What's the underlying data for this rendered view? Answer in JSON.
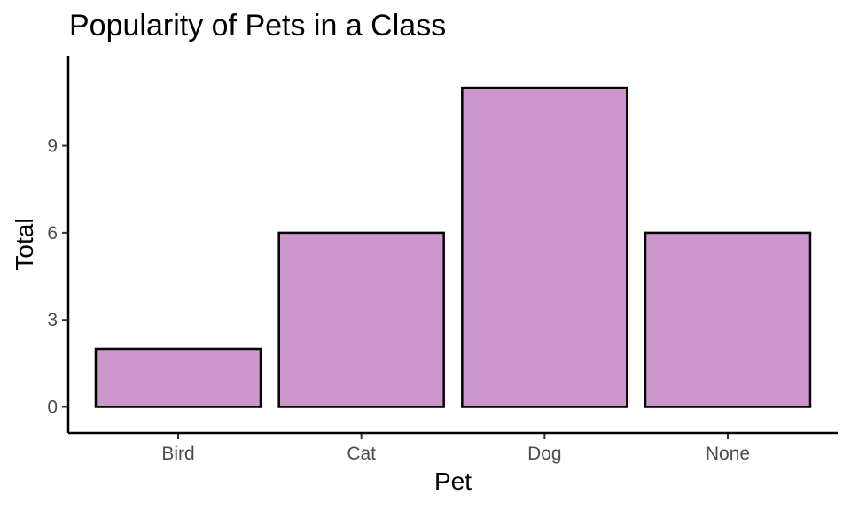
{
  "colors": {
    "bar_fill": "#CD96CD",
    "bar_outline": "#000000",
    "axis": "#000000",
    "tick_label": "#4D4D4D",
    "background": "#FFFFFF"
  },
  "chart_data": {
    "type": "bar",
    "title": "Popularity of Pets in a Class",
    "xlabel": "Pet",
    "ylabel": "Total",
    "categories": [
      "Bird",
      "Cat",
      "Dog",
      "None"
    ],
    "values": [
      2,
      6,
      11,
      6
    ],
    "yticks": [
      0,
      3,
      6,
      9
    ],
    "ylim": [
      -0.9,
      12.1
    ],
    "grid": false,
    "legend": "none"
  }
}
